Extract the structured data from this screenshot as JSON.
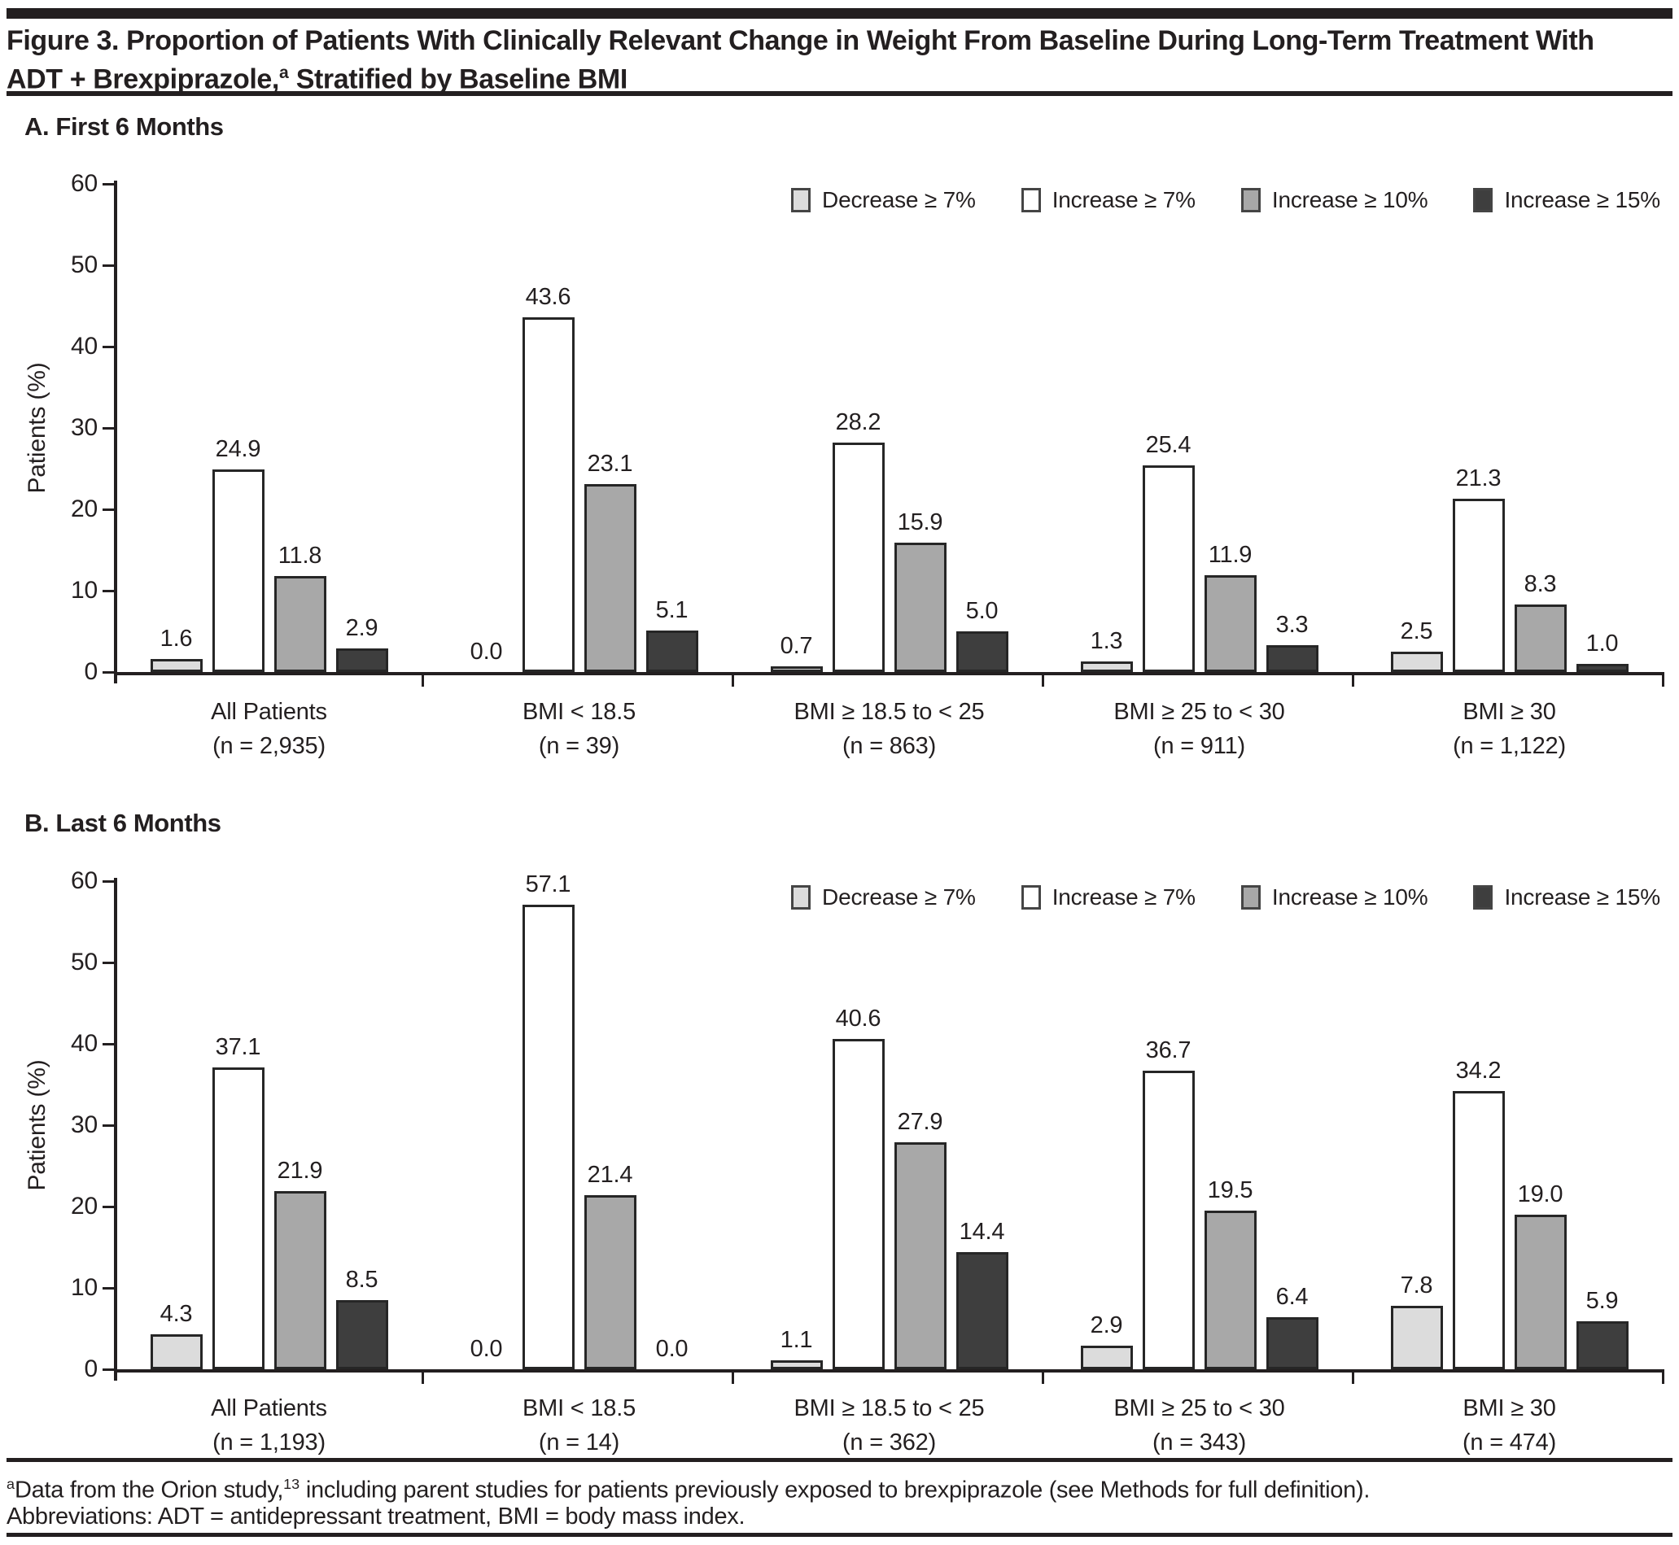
{
  "header": {
    "title_line1": "Figure 3. Proportion of Patients With Clinically Relevant Change in Weight From Baseline During Long-Term Treatment With",
    "title_line2_part1": "ADT + Brexpiprazole,",
    "title_line2_sup": "a",
    "title_line2_part2": " Stratified by Baseline BMI"
  },
  "colors": {
    "ink": "#231f20",
    "bar_border": "#262626",
    "decrease_ge_7": "#dcdcdc",
    "increase_ge_7": "#ffffff",
    "increase_ge_10": "#a8a8a8",
    "increase_ge_15": "#3e3e3e"
  },
  "chart_data": [
    {
      "type": "bar",
      "panel_label": "A. First 6 Months",
      "ylabel": "Patients (%)",
      "ylim": [
        0,
        60
      ],
      "yticks": [
        0,
        10,
        20,
        30,
        40,
        50,
        60
      ],
      "grid": false,
      "legend_position": "inside-top-right",
      "value_label_format": "one-decimal",
      "categories": [
        {
          "label": "All Patients",
          "n": "(n = 2,935)"
        },
        {
          "label": "BMI < 18.5",
          "n": "(n = 39)"
        },
        {
          "label": "BMI ≥ 18.5 to < 25",
          "n": "(n = 863)"
        },
        {
          "label": "BMI ≥ 25 to < 30",
          "n": "(n = 911)"
        },
        {
          "label": "BMI ≥ 30",
          "n": "(n = 1,122)"
        }
      ],
      "series": [
        {
          "name": "Decrease ≥ 7%",
          "color": "#dcdcdc",
          "values": [
            1.6,
            0.0,
            0.7,
            1.3,
            2.5
          ]
        },
        {
          "name": "Increase ≥ 7%",
          "color": "#ffffff",
          "values": [
            24.9,
            43.6,
            28.2,
            25.4,
            21.3
          ]
        },
        {
          "name": "Increase ≥ 10%",
          "color": "#a8a8a8",
          "values": [
            11.8,
            23.1,
            15.9,
            11.9,
            8.3
          ]
        },
        {
          "name": "Increase ≥ 15%",
          "color": "#3e3e3e",
          "values": [
            2.9,
            5.1,
            5.0,
            3.3,
            1.0
          ]
        }
      ]
    },
    {
      "type": "bar",
      "panel_label": "B. Last 6 Months",
      "ylabel": "Patients (%)",
      "ylim": [
        0,
        60
      ],
      "yticks": [
        0,
        10,
        20,
        30,
        40,
        50,
        60
      ],
      "grid": false,
      "legend_position": "inside-top-right",
      "value_label_format": "one-decimal",
      "categories": [
        {
          "label": "All Patients",
          "n": "(n = 1,193)"
        },
        {
          "label": "BMI < 18.5",
          "n": "(n = 14)"
        },
        {
          "label": "BMI ≥ 18.5 to < 25",
          "n": "(n = 362)"
        },
        {
          "label": "BMI ≥ 25 to < 30",
          "n": "(n = 343)"
        },
        {
          "label": "BMI ≥ 30",
          "n": "(n = 474)"
        }
      ],
      "series": [
        {
          "name": "Decrease ≥ 7%",
          "color": "#dcdcdc",
          "values": [
            4.3,
            0.0,
            1.1,
            2.9,
            7.8
          ]
        },
        {
          "name": "Increase ≥ 7%",
          "color": "#ffffff",
          "values": [
            37.1,
            57.1,
            40.6,
            36.7,
            34.2
          ]
        },
        {
          "name": "Increase ≥ 10%",
          "color": "#a8a8a8",
          "values": [
            21.9,
            21.4,
            27.9,
            19.5,
            19.0
          ]
        },
        {
          "name": "Increase ≥ 15%",
          "color": "#3e3e3e",
          "values": [
            8.5,
            0.0,
            14.4,
            6.4,
            5.9
          ]
        }
      ]
    }
  ],
  "footnotes": {
    "line1_sup1": "a",
    "line1_part1": "Data from the Orion study,",
    "line1_sup2": "13",
    "line1_part2": " including parent studies for patients previously exposed to brexpiprazole (see Methods for full definition).",
    "line2": "Abbreviations: ADT = antidepressant treatment, BMI = body mass index."
  }
}
